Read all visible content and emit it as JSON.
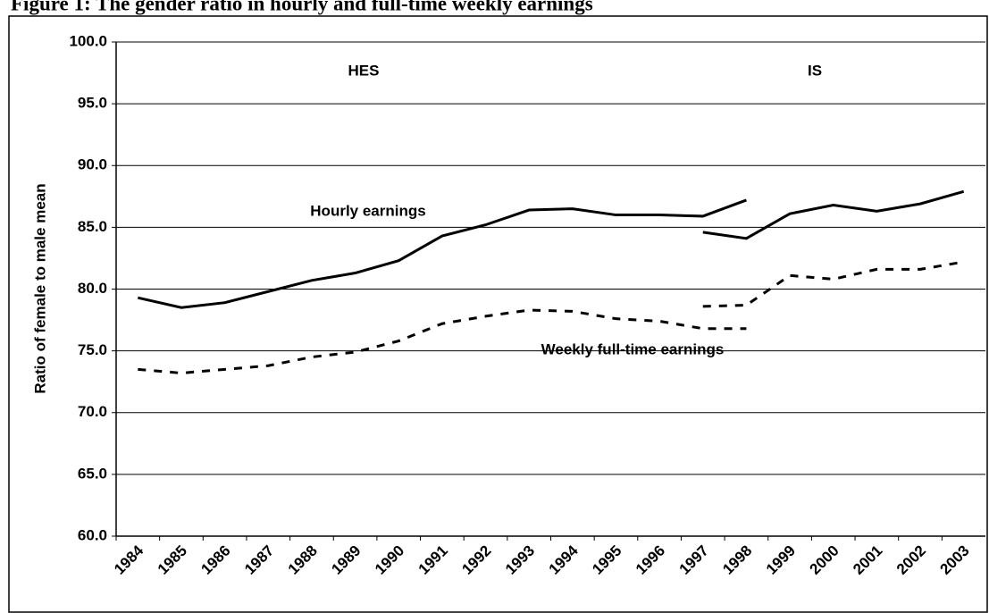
{
  "chart_data": {
    "type": "line",
    "title": "Figure 1: The gender ratio in hourly and full-time weekly earnings",
    "y_label": "Ratio of female to male mean",
    "categories": [
      "1984",
      "1985",
      "1986",
      "1987",
      "1988",
      "1989",
      "1990",
      "1991",
      "1992",
      "1993",
      "1994",
      "1995",
      "1996",
      "1997",
      "1998",
      "1999",
      "2000",
      "2001",
      "2002",
      "2003"
    ],
    "series": [
      {
        "color": "#000000",
        "dashed": false,
        "values": [
          79.3,
          78.5,
          78.9,
          79.8,
          80.7,
          81.3,
          82.3,
          84.3,
          85.2,
          86.4,
          86.5,
          86.0,
          86.0,
          85.9,
          87.2,
          null,
          null,
          null,
          null,
          null
        ]
      },
      {
        "color": "#000000",
        "dashed": false,
        "values": [
          null,
          null,
          null,
          null,
          null,
          null,
          null,
          null,
          null,
          null,
          null,
          null,
          null,
          84.6,
          84.1,
          86.1,
          86.8,
          86.3,
          86.9,
          87.9
        ]
      },
      {
        "color": "#000000",
        "dashed": true,
        "values": [
          73.5,
          73.2,
          73.5,
          73.8,
          74.5,
          74.9,
          75.8,
          77.2,
          77.8,
          78.3,
          78.2,
          77.6,
          77.4,
          76.8,
          76.8,
          null,
          null,
          null,
          null,
          null
        ]
      },
      {
        "color": "#000000",
        "dashed": true,
        "values": [
          null,
          null,
          null,
          null,
          null,
          null,
          null,
          null,
          null,
          null,
          null,
          null,
          null,
          78.6,
          78.7,
          81.1,
          80.8,
          81.6,
          81.6,
          82.2
        ]
      }
    ],
    "annotations": [
      "HES",
      "IS",
      "Hourly earnings",
      "Weekly full-time earnings"
    ],
    "ylim": [
      60,
      100
    ],
    "yticks": [
      {
        "value": 60,
        "label": "60.0"
      },
      {
        "value": 65,
        "label": "65.0"
      },
      {
        "value": 70,
        "label": "70.0"
      },
      {
        "value": 75,
        "label": "75.0"
      },
      {
        "value": 80,
        "label": "80.0"
      },
      {
        "value": 85,
        "label": "85.0"
      },
      {
        "value": 90,
        "label": "90.0"
      },
      {
        "value": 95,
        "label": "95.0"
      },
      {
        "value": 100,
        "label": "100.0"
      }
    ],
    "grid": true
  }
}
